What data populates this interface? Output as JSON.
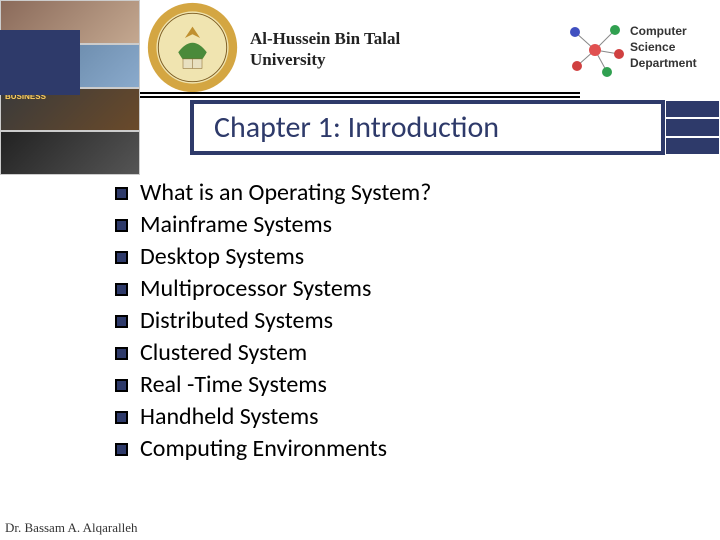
{
  "header": {
    "university_name": "Al-Hussein Bin Talal University",
    "department_name": "Computer Science Department",
    "accent_color": "#2e3a6a",
    "emblem": {
      "outer_ring": "#d4a642",
      "inner_bg": "#f0e4b0",
      "symbol_color": "#4a8a3a"
    },
    "dept_logo": {
      "node_colors": [
        "#d04040",
        "#4050c0",
        "#30a050",
        "#c08030",
        "#a040a0"
      ],
      "center_color": "#e05050",
      "edge_color": "#888"
    },
    "left_strip_label": "BUSINESS"
  },
  "title": "Chapter 1: Introduction",
  "bullets": [
    "What is an Operating System?",
    "Mainframe Systems",
    "Desktop Systems",
    "Multiprocessor Systems",
    "Distributed Systems",
    "Clustered System",
    "Real -Time Systems",
    "Handheld Systems",
    "Computing Environments"
  ],
  "footer": "Dr. Bassam A. Alqaralleh"
}
